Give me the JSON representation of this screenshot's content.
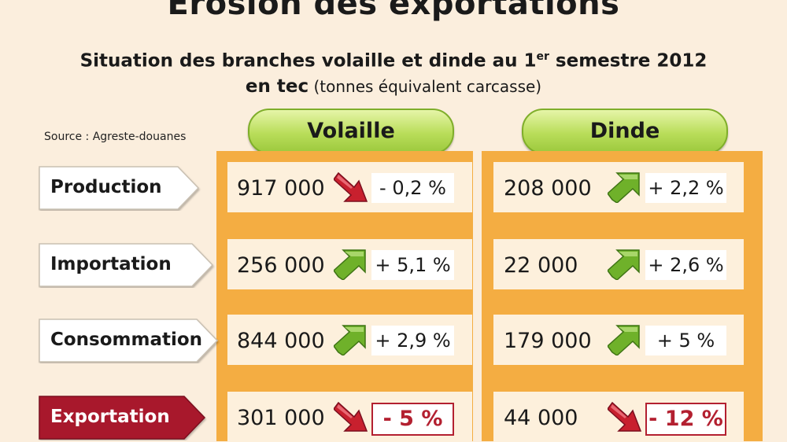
{
  "title": "Erosion des exportations",
  "subtitle": {
    "line1_pre": "Situation des branches volaille et dinde au 1",
    "line1_sup": "er",
    "line1_post": " semestre 2012",
    "line2_bold": "en tec",
    "line2_light": " (tonnes équivalent carcasse)"
  },
  "source": "Source : Agreste-douanes",
  "colors": {
    "band": "#f4ad42",
    "cell": "#fdf0dc",
    "header_green": "#b9dd5a",
    "up_arrow": "#6fb12a",
    "down_arrow": "#c8202e",
    "highlight": "#a8182c"
  },
  "chart_data": {
    "type": "table",
    "columns": [
      "Volaille",
      "Dinde"
    ],
    "rows": [
      {
        "label": "Production",
        "highlight": false,
        "volaille": {
          "value": "917 000",
          "change": "- 0,2 %",
          "trend": "down"
        },
        "dinde": {
          "value": "208 000",
          "change": "+ 2,2 %",
          "trend": "up"
        }
      },
      {
        "label": "Importation",
        "highlight": false,
        "volaille": {
          "value": "256 000",
          "change": "+ 5,1 %",
          "trend": "up"
        },
        "dinde": {
          "value": "22 000",
          "change": "+ 2,6 %",
          "trend": "up"
        }
      },
      {
        "label": "Consommation",
        "highlight": false,
        "volaille": {
          "value": "844 000",
          "change": "+ 2,9 %",
          "trend": "up"
        },
        "dinde": {
          "value": "179 000",
          "change": "+ 5 %",
          "trend": "up"
        }
      },
      {
        "label": "Exportation",
        "highlight": true,
        "volaille": {
          "value": "301 000",
          "change": "- 5 %",
          "trend": "down"
        },
        "dinde": {
          "value": "44 000",
          "change": "- 12 %",
          "trend": "down"
        }
      }
    ]
  }
}
